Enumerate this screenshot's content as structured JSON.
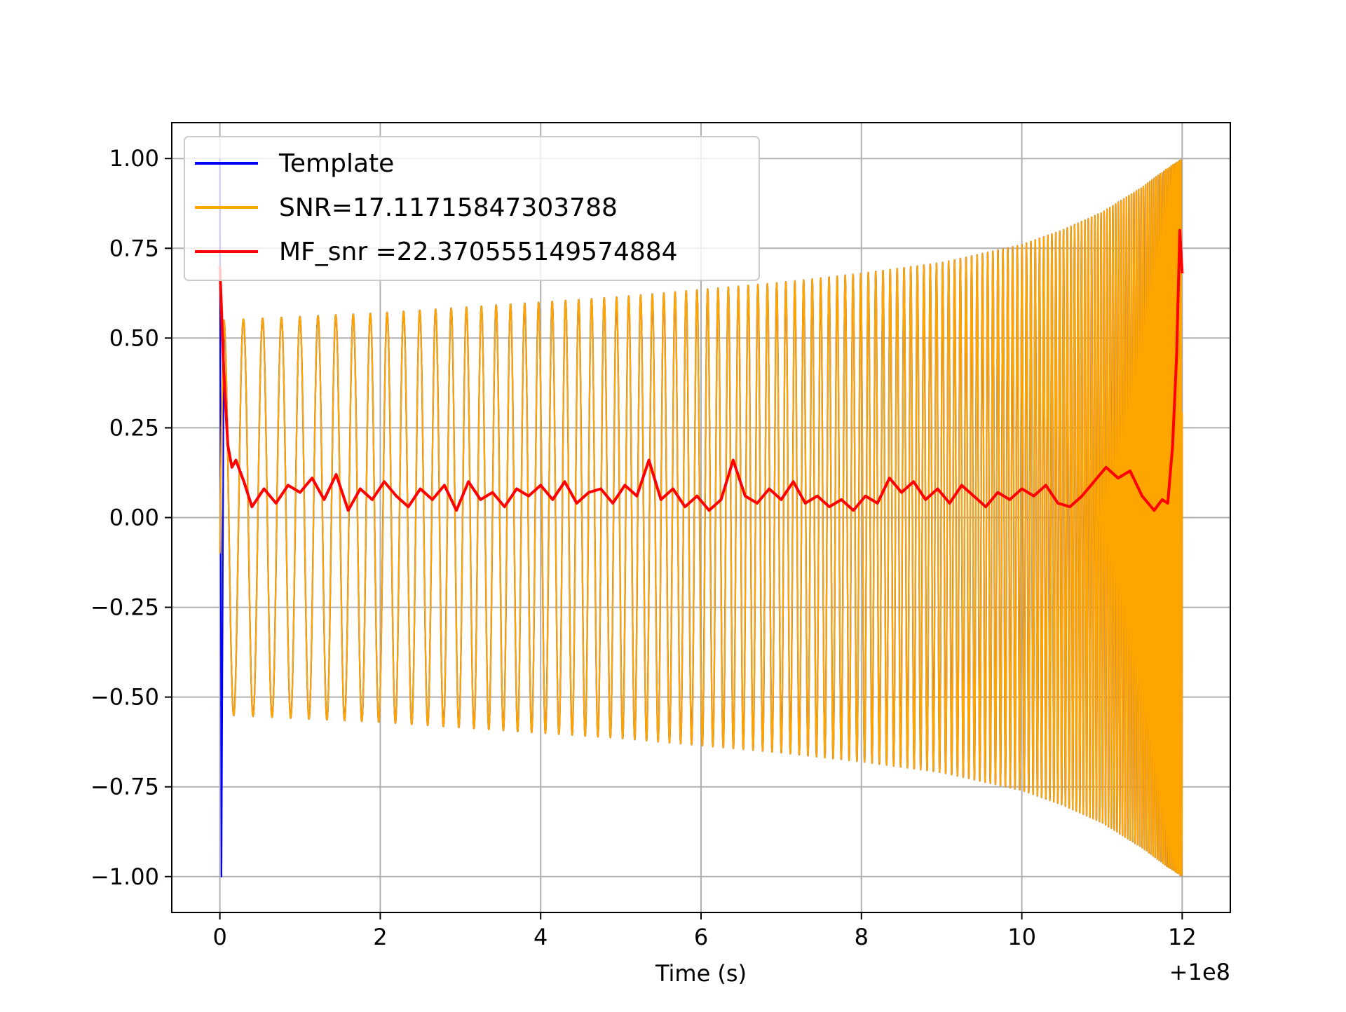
{
  "chart_data": {
    "type": "line",
    "title": "",
    "xlabel": "Time (s)",
    "ylabel": "",
    "x_offset_label": "+1e8",
    "xlim": [
      -0.6,
      12.6
    ],
    "ylim": [
      -1.1,
      1.1
    ],
    "x_ticks": [
      {
        "value": 0,
        "label": "0"
      },
      {
        "value": 2,
        "label": "2"
      },
      {
        "value": 4,
        "label": "4"
      },
      {
        "value": 6,
        "label": "6"
      },
      {
        "value": 8,
        "label": "8"
      },
      {
        "value": 10,
        "label": "10"
      },
      {
        "value": 12,
        "label": "12"
      }
    ],
    "y_ticks": [
      {
        "value": 1.0,
        "label": "1.00"
      },
      {
        "value": 0.75,
        "label": "0.75"
      },
      {
        "value": 0.5,
        "label": "0.50"
      },
      {
        "value": 0.25,
        "label": "0.25"
      },
      {
        "value": 0.0,
        "label": "0.00"
      },
      {
        "value": -0.25,
        "label": "−0.25"
      },
      {
        "value": -0.5,
        "label": "−0.50"
      },
      {
        "value": -0.75,
        "label": "−0.75"
      },
      {
        "value": -1.0,
        "label": "−1.00"
      }
    ],
    "grid": true,
    "legend_position": "top-left",
    "series": [
      {
        "name": "Template",
        "color": "#0000ff",
        "kind": "chirp",
        "envelope": {
          "x": [
            0.05,
            1,
            2,
            3,
            4,
            5,
            6,
            7,
            8,
            9,
            10,
            10.5,
            11,
            11.5,
            11.8,
            12.0
          ],
          "y": [
            0.55,
            0.56,
            0.57,
            0.585,
            0.6,
            0.615,
            0.635,
            0.655,
            0.68,
            0.71,
            0.76,
            0.8,
            0.85,
            0.92,
            0.97,
            1.0
          ]
        },
        "cycles": 135,
        "start_points": [
          [
            0.0,
            1.0
          ],
          [
            0.02,
            -1.0
          ]
        ]
      },
      {
        "name": "SNR=17.11715847303788",
        "color": "#ffa500",
        "kind": "chirp",
        "envelope": {
          "x": [
            0.05,
            1,
            2,
            3,
            4,
            5,
            6,
            7,
            8,
            9,
            10,
            10.5,
            11,
            11.5,
            11.8,
            12.0
          ],
          "y": [
            0.55,
            0.56,
            0.57,
            0.585,
            0.6,
            0.615,
            0.635,
            0.655,
            0.68,
            0.71,
            0.76,
            0.8,
            0.85,
            0.92,
            0.97,
            1.0
          ]
        },
        "cycles": 135,
        "start_points": [
          [
            0.0,
            -0.1
          ],
          [
            0.02,
            0.25
          ]
        ]
      },
      {
        "name": "MF_snr =22.370555149574884",
        "color": "#ff0000",
        "kind": "line",
        "x": [
          0.0,
          0.05,
          0.1,
          0.15,
          0.2,
          0.3,
          0.4,
          0.55,
          0.7,
          0.85,
          1.0,
          1.15,
          1.3,
          1.45,
          1.6,
          1.75,
          1.9,
          2.05,
          2.2,
          2.35,
          2.5,
          2.65,
          2.8,
          2.95,
          3.1,
          3.25,
          3.4,
          3.55,
          3.7,
          3.85,
          4.0,
          4.15,
          4.3,
          4.45,
          4.6,
          4.75,
          4.9,
          5.05,
          5.2,
          5.35,
          5.5,
          5.65,
          5.8,
          5.95,
          6.1,
          6.25,
          6.4,
          6.55,
          6.7,
          6.85,
          7.0,
          7.15,
          7.3,
          7.45,
          7.6,
          7.75,
          7.9,
          8.05,
          8.2,
          8.35,
          8.5,
          8.65,
          8.8,
          8.95,
          9.1,
          9.25,
          9.4,
          9.55,
          9.7,
          9.85,
          10.0,
          10.15,
          10.3,
          10.45,
          10.6,
          10.75,
          10.9,
          11.05,
          11.2,
          11.35,
          11.5,
          11.65,
          11.75,
          11.82,
          11.88,
          11.93,
          11.97,
          12.0
        ],
        "y": [
          0.7,
          0.4,
          0.2,
          0.14,
          0.16,
          0.1,
          0.03,
          0.08,
          0.04,
          0.09,
          0.07,
          0.11,
          0.05,
          0.12,
          0.02,
          0.08,
          0.05,
          0.1,
          0.06,
          0.03,
          0.08,
          0.05,
          0.09,
          0.02,
          0.1,
          0.05,
          0.07,
          0.03,
          0.08,
          0.06,
          0.09,
          0.05,
          0.1,
          0.04,
          0.07,
          0.08,
          0.04,
          0.09,
          0.06,
          0.16,
          0.05,
          0.08,
          0.03,
          0.06,
          0.02,
          0.05,
          0.16,
          0.06,
          0.04,
          0.08,
          0.05,
          0.1,
          0.04,
          0.06,
          0.03,
          0.05,
          0.02,
          0.06,
          0.04,
          0.11,
          0.07,
          0.1,
          0.05,
          0.08,
          0.04,
          0.09,
          0.06,
          0.03,
          0.07,
          0.05,
          0.08,
          0.06,
          0.09,
          0.04,
          0.03,
          0.06,
          0.1,
          0.14,
          0.11,
          0.13,
          0.06,
          0.02,
          0.05,
          0.04,
          0.2,
          0.45,
          0.8,
          0.68
        ]
      }
    ]
  }
}
